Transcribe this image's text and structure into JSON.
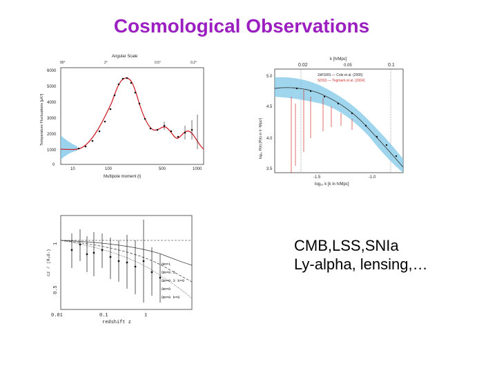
{
  "slide": {
    "title": "Cosmological Observations",
    "caption_line1": "CMB,LSS,SNIa",
    "caption_line2": "Ly-alpha, lensing,…"
  },
  "cmb_plot": {
    "top_label": "Angular Scale",
    "top_ticks": [
      "90°",
      "2°",
      "0.5°",
      "0.2°"
    ],
    "ylabel": "Temperature Fluctuations [μK²]",
    "xlabel": "Multipole moment (l)",
    "y_ticks": [
      "6000",
      "5000",
      "4000",
      "3000",
      "2000",
      "1000",
      "0"
    ],
    "x_ticks": [
      "10",
      "100",
      "500",
      "1000"
    ]
  },
  "lss_plot": {
    "top_label": "k  [h/Mpc]",
    "top_ticks": [
      "0.02",
      "0.05",
      "0.1"
    ],
    "legend": [
      "2dFGRS — Cole et al. (2005)",
      "SDSS — Tegmark et al. (2004)"
    ],
    "ylabel": "log₁₀ P(k) [P(k) in h⁻³Mpc³]",
    "xlabel": "log₁₀ k  [k in h/Mpc]",
    "y_ticks": [
      "5.0",
      "4.5",
      "4.0",
      "3.5"
    ],
    "x_ticks": [
      "-1.5",
      "-1.0"
    ]
  },
  "sn_plot": {
    "ylabel": "cz / (H₀dₗ)",
    "xlabel": "redshift  z",
    "y_ticks": [
      "1",
      "0.5"
    ],
    "x_ticks": [
      "0.01",
      "0.1",
      "1"
    ],
    "legend": [
      "Ωm=1",
      "Ωm=0.3",
      "Ωm=0.3 k=0",
      "Ωm=0",
      "Ωm=0 k=0"
    ]
  },
  "colors": {
    "title": "#9b1fc0",
    "cmb_curve": "#d0202a",
    "band": "#7fc8e8",
    "sdss": "#d03030"
  }
}
